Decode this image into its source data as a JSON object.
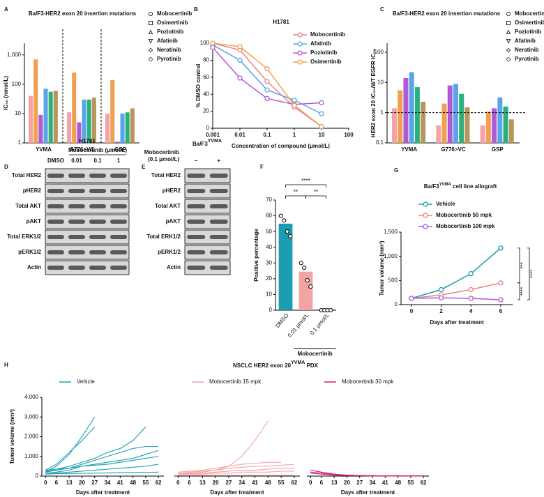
{
  "panel_labels": [
    "A",
    "B",
    "C",
    "D",
    "E",
    "F",
    "G",
    "H"
  ],
  "chart_data": [
    {
      "type": "bar",
      "title": "Ba/F3-HER2 exon 20 insertion mutations",
      "ylabel": "IC₅₀ (nmol/L)",
      "log_y": true,
      "categories": [
        "YVMA",
        "G776>VC",
        "GSP"
      ],
      "series": [
        {
          "name": "Mobocertinib",
          "color": "#f4a3a3",
          "values": [
            40,
            11,
            10
          ]
        },
        {
          "name": "Osimertinib",
          "color": "#f0a050",
          "values": [
            700,
            250,
            140
          ]
        },
        {
          "name": "Poziotinib",
          "color": "#b05ad8",
          "values": [
            9,
            5,
            1.1
          ]
        },
        {
          "name": "Afatinib",
          "color": "#5ba4e6",
          "values": [
            70,
            30,
            10
          ]
        },
        {
          "name": "Neratinib",
          "color": "#2bb07b",
          "values": [
            55,
            30,
            11
          ]
        },
        {
          "name": "Pyrotinib",
          "color": "#b8955a",
          "values": [
            60,
            35,
            15
          ]
        }
      ],
      "ylim": [
        1,
        2500
      ],
      "yticks": [
        1,
        10,
        100,
        {
          "value": 1000,
          "label": "1,000"
        }
      ]
    },
    {
      "type": "line",
      "title": "H1781",
      "xlabel": "Concentration of compound (μmol/L)",
      "ylabel": "% DMSO control",
      "log_x": true,
      "x": [
        0.001,
        0.01,
        0.1,
        1,
        10
      ],
      "xlim": [
        0.001,
        100
      ],
      "xticks": [
        0.001,
        0.01,
        0.1,
        1,
        10,
        100
      ],
      "ylim": [
        0,
        100
      ],
      "yticks": [
        0,
        20,
        40,
        60,
        80,
        100
      ],
      "legend": "upper right",
      "series": [
        {
          "name": "Mobocertinib",
          "color": "#f08080",
          "values": [
            100,
            92,
            55,
            25,
            2
          ]
        },
        {
          "name": "Afatinib",
          "color": "#5ba4e6",
          "values": [
            98,
            80,
            45,
            33,
            17
          ]
        },
        {
          "name": "Poziotinib",
          "color": "#b05ad8",
          "values": [
            95,
            59,
            35,
            28,
            30
          ]
        },
        {
          "name": "Osimertinib",
          "color": "#f0a050",
          "values": [
            100,
            96,
            70,
            27,
            2
          ]
        }
      ]
    },
    {
      "type": "bar",
      "title": "Ba/F3-HER2 exon 20 insertion mutations",
      "ylabel": "HER2 exon 20 IC₅₀/WT EGFR IC₅₀",
      "log_y": true,
      "categories": [
        "YVMA",
        "G776>VC",
        "GSP"
      ],
      "series": [
        {
          "name": "Mobocertinib",
          "color": "#f4a3a3",
          "values": [
            1.4,
            0.38,
            0.38
          ]
        },
        {
          "name": "Osimertinib",
          "color": "#f0a050",
          "values": [
            5.5,
            2.0,
            1.1
          ]
        },
        {
          "name": "Poziotinib",
          "color": "#b05ad8",
          "values": [
            14,
            8,
            1.4
          ]
        },
        {
          "name": "Afatinib",
          "color": "#5ba4e6",
          "values": [
            22,
            9,
            3.2
          ]
        },
        {
          "name": "Neratinib",
          "color": "#2bb07b",
          "values": [
            7,
            4.2,
            1.6
          ]
        },
        {
          "name": "Pyrotinib",
          "color": "#b8955a",
          "values": [
            2.3,
            1.5,
            0.6
          ]
        }
      ],
      "ylim": [
        0.1,
        200
      ],
      "yticks": [
        0.1,
        1,
        10,
        100
      ],
      "refline": 1
    },
    {
      "type": "dotbar",
      "ylabel": "Positive percentage",
      "categories": [
        "DMSO",
        "0.01 μmol/L",
        "0.1 μmol/L"
      ],
      "group_label": "Mobocertinib",
      "colors": [
        "#1a9db0",
        "#f4a3a3",
        "#b05ad8"
      ],
      "values": [
        55,
        24.5,
        0
      ],
      "points": [
        [
          60,
          57,
          50,
          47
        ],
        [
          30,
          27,
          19,
          15
        ],
        [
          0,
          0,
          0,
          0
        ]
      ],
      "ylim": [
        0,
        70
      ],
      "yticks": [
        0,
        10,
        20,
        30,
        40,
        50,
        60,
        70
      ],
      "annotations": [
        {
          "text": "****",
          "from": 0,
          "to": 2
        },
        {
          "text": "**",
          "from": 0,
          "to": 1
        },
        {
          "text": "**",
          "from": 1,
          "to": 2
        }
      ]
    },
    {
      "type": "line",
      "title": "Ba/F3",
      "title_sup": "YVMA",
      "title_rest": " cell line allograft",
      "xlabel": "Days after treatment",
      "ylabel": "Tumor volume (mm³)",
      "x": [
        0,
        2,
        4,
        6
      ],
      "xlim": [
        -0.7,
        6.8
      ],
      "xticks": [
        0,
        2,
        4,
        6
      ],
      "ylim": [
        0,
        1500
      ],
      "yticks": [
        0,
        500,
        {
          "value": 1000,
          "label": "1,000"
        },
        {
          "value": 1500,
          "label": "1,500"
        }
      ],
      "series": [
        {
          "name": "Vehicle",
          "color": "#1a9db0",
          "values": [
            130,
            310,
            640,
            1170
          ]
        },
        {
          "name": "Mobocertinib 50 mpk",
          "color": "#f08080",
          "values": [
            130,
            200,
            310,
            450
          ]
        },
        {
          "name": "Mobocertinib 100 mpk",
          "color": "#b05ad8",
          "values": [
            130,
            140,
            130,
            100
          ]
        }
      ],
      "annotations": [
        {
          "text": "***",
          "from": 0,
          "to": 1
        },
        {
          "text": "****",
          "from": 1,
          "to": 2
        },
        {
          "text": "****",
          "from": 0,
          "to": 2
        }
      ]
    },
    {
      "type": "spaghetti",
      "xlabel": "Days after treatment",
      "ylabel": "Tumor volume (mm³)",
      "x": [
        0,
        6,
        13,
        20,
        27,
        34,
        41,
        48,
        55,
        62
      ],
      "xlim": [
        -2,
        65
      ],
      "xticks": [
        0,
        6,
        13,
        20,
        27,
        34,
        41,
        48,
        55,
        62
      ],
      "ylim": [
        0,
        4000
      ],
      "yticks": [
        0,
        {
          "value": 1000,
          "label": "1,000"
        },
        {
          "value": 2000,
          "label": "2,000"
        },
        {
          "value": 3000,
          "label": "3,000"
        },
        {
          "value": 4000,
          "label": "4,000"
        }
      ],
      "series": [
        {
          "name": "Vehicle",
          "color": "#1a9db0",
          "lines": [
            [
              200,
              500,
              1100,
              2000,
              3000,
              null,
              null,
              null,
              null,
              null
            ],
            [
              300,
              600,
              1200,
              1800,
              2500,
              null,
              null,
              null,
              null,
              null
            ],
            [
              250,
              350,
              500,
              700,
              900,
              1200,
              1400,
              1800,
              2500,
              null
            ],
            [
              200,
              300,
              400,
              600,
              800,
              1000,
              1200,
              1400,
              1500,
              1500
            ],
            [
              150,
              200,
              300,
              500,
              600,
              700,
              800,
              900,
              1100,
              1300
            ],
            [
              300,
              350,
              400,
              500,
              550,
              600,
              700,
              800,
              900,
              1000
            ],
            [
              100,
              150,
              200,
              250,
              300,
              350,
              400,
              450,
              500,
              600
            ],
            [
              100,
              120,
              130,
              140,
              150,
              160,
              170,
              180,
              190,
              200
            ]
          ]
        }
      ]
    },
    {
      "type": "spaghetti",
      "xlabel": "Days after treatment",
      "x": [
        0,
        6,
        13,
        20,
        27,
        34,
        41,
        48,
        55,
        62
      ],
      "xlim": [
        -2,
        65
      ],
      "xticks": [
        0,
        6,
        13,
        20,
        27,
        34,
        41,
        48,
        55,
        62
      ],
      "ylim": [
        0,
        4000
      ],
      "series": [
        {
          "name": "Mobocertinib 15 mpk",
          "color": "#f4a3a3",
          "lines": [
            [
              100,
              150,
              200,
              300,
              500,
              1000,
              1800,
              2800,
              null,
              null
            ],
            [
              200,
              250,
              300,
              400,
              500,
              600,
              650,
              700,
              700,
              null
            ],
            [
              150,
              200,
              250,
              300,
              400,
              450,
              500,
              500,
              550,
              600
            ],
            [
              100,
              120,
              150,
              200,
              250,
              300,
              300,
              350,
              400,
              400
            ],
            [
              100,
              100,
              100,
              150,
              150,
              200,
              200,
              200,
              250,
              250
            ],
            [
              50,
              50,
              50,
              50,
              50,
              50,
              50,
              50,
              50,
              50
            ]
          ]
        }
      ]
    },
    {
      "type": "spaghetti",
      "xlabel": "Days after treatment",
      "x": [
        0,
        6,
        13,
        20,
        27,
        34,
        41,
        48,
        55,
        62
      ],
      "xlim": [
        -2,
        65
      ],
      "xticks": [
        0,
        6,
        13,
        20,
        27,
        34,
        41,
        48,
        55,
        62
      ],
      "ylim": [
        0,
        4000
      ],
      "series": [
        {
          "name": "Mobocertinib 30 mpk",
          "color": "#d6197a",
          "lines": [
            [
              300,
              200,
              100,
              50,
              30,
              20,
              10,
              10,
              10,
              10
            ],
            [
              200,
              150,
              80,
              40,
              20,
              10,
              10,
              10,
              10,
              10
            ],
            [
              150,
              100,
              50,
              30,
              20,
              10,
              10,
              10,
              10,
              10
            ]
          ]
        }
      ]
    }
  ],
  "panel_h_title": {
    "text": "NSCLC HER2 exon 20",
    "sup": "YVMA",
    "rest": " PDX"
  },
  "blots": [
    {
      "title": "H1781",
      "header": "Mobocertinib (μmol/L)",
      "lanes": [
        "DMSO",
        "0.01",
        "0.1",
        "1"
      ],
      "rows": [
        "Total HER2",
        "pHER2",
        "Total AKT",
        "pAKT",
        "Total ERK1/2",
        "pERK1/2",
        "Actin"
      ]
    },
    {
      "title": "Ba/F3",
      "title_sup": "YVMA",
      "header": [
        "Mobocertinib",
        "(0.1 μmol/L)"
      ],
      "lanes": [
        "–",
        "+"
      ],
      "rows": [
        "Total HER2",
        "pHER2",
        "Total AKT",
        "pAKT",
        "Total ERK1/2",
        "pERK1/2",
        "Actin"
      ]
    }
  ]
}
